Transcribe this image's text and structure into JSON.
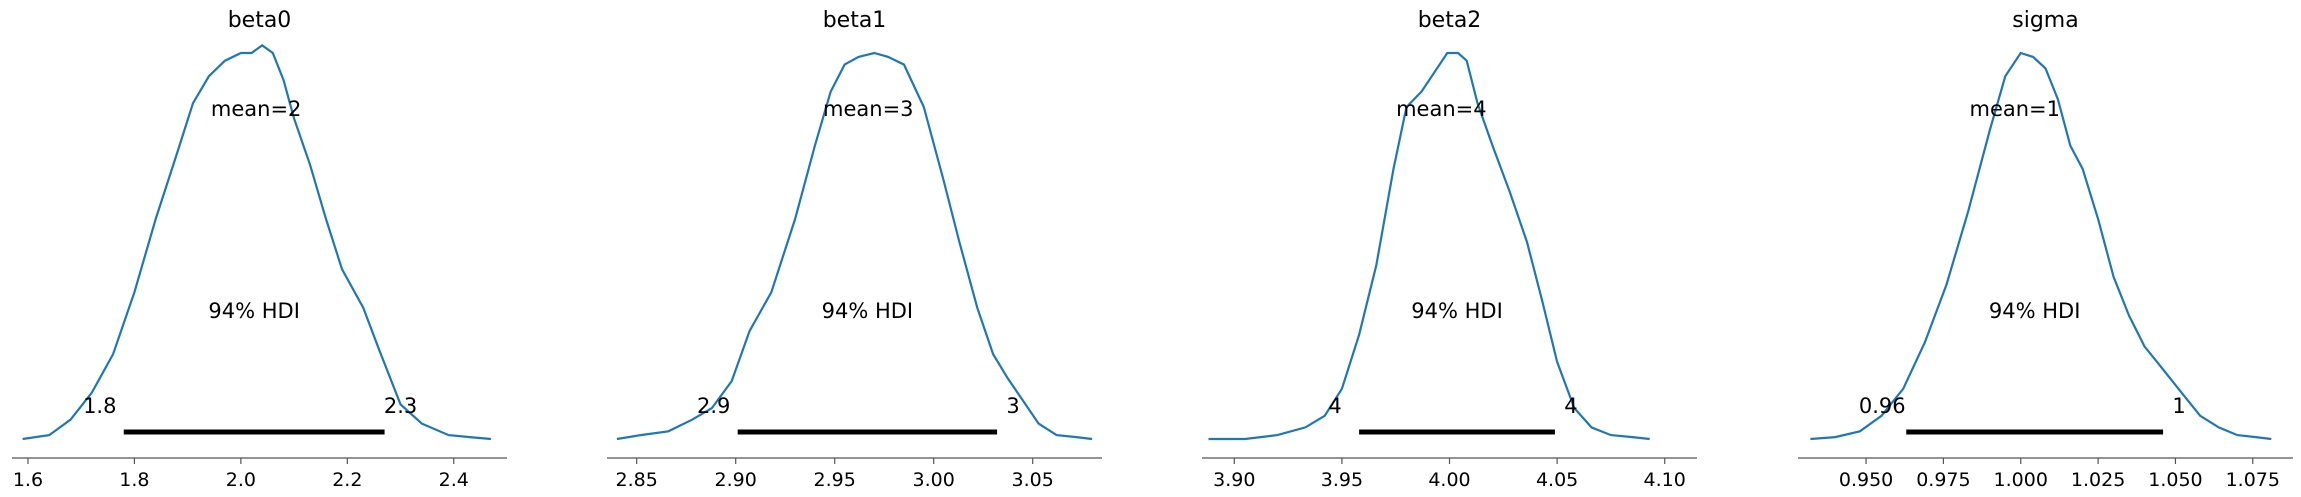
{
  "chart_data": [
    {
      "type": "line",
      "title": "beta0",
      "xlim": [
        1.57,
        2.5
      ],
      "ticks": [
        1.6,
        1.8,
        2.0,
        2.2,
        2.4
      ],
      "tick_labels": [
        "1.6",
        "1.8",
        "2.0",
        "2.2",
        "2.4"
      ],
      "mean_label": "mean=2",
      "hdi_label": "94% HDI",
      "hdi": [
        1.78,
        2.27
      ],
      "hdi_low_label": "1.8",
      "hdi_high_label": "2.3",
      "density": {
        "x": [
          1.59,
          1.64,
          1.68,
          1.72,
          1.76,
          1.8,
          1.84,
          1.88,
          1.91,
          1.94,
          1.97,
          2.0,
          2.02,
          2.04,
          2.06,
          2.08,
          2.1,
          2.13,
          2.16,
          2.19,
          2.23,
          2.26,
          2.3,
          2.34,
          2.39,
          2.43,
          2.47
        ],
        "y": [
          0.0,
          0.01,
          0.05,
          0.12,
          0.22,
          0.38,
          0.57,
          0.74,
          0.87,
          0.94,
          0.98,
          1.0,
          1.0,
          1.02,
          1.0,
          0.93,
          0.83,
          0.71,
          0.57,
          0.44,
          0.34,
          0.23,
          0.09,
          0.04,
          0.01,
          0.005,
          0.0
        ]
      }
    },
    {
      "type": "line",
      "title": "beta1",
      "xlim": [
        2.835,
        3.085
      ],
      "ticks": [
        2.85,
        2.9,
        2.95,
        3.0,
        3.05
      ],
      "tick_labels": [
        "2.85",
        "2.90",
        "2.95",
        "3.00",
        "3.05"
      ],
      "mean_label": "mean=3",
      "hdi_label": "94% HDI",
      "hdi": [
        2.901,
        3.032
      ],
      "hdi_low_label": "2.9",
      "hdi_high_label": "3",
      "density": {
        "x": [
          2.84,
          2.852,
          2.866,
          2.878,
          2.888,
          2.898,
          2.907,
          2.918,
          2.93,
          2.94,
          2.948,
          2.955,
          2.962,
          2.97,
          2.977,
          2.985,
          2.995,
          3.005,
          3.013,
          3.022,
          3.03,
          3.037,
          3.045,
          3.053,
          3.062,
          3.072,
          3.08
        ],
        "y": [
          0.0,
          0.01,
          0.02,
          0.05,
          0.08,
          0.15,
          0.28,
          0.38,
          0.57,
          0.76,
          0.9,
          0.97,
          0.99,
          1.0,
          0.99,
          0.97,
          0.86,
          0.67,
          0.51,
          0.34,
          0.22,
          0.16,
          0.1,
          0.04,
          0.01,
          0.005,
          0.0
        ]
      }
    },
    {
      "type": "line",
      "title": "beta2",
      "xlim": [
        3.885,
        4.115
      ],
      "ticks": [
        3.9,
        3.95,
        4.0,
        4.05,
        4.1
      ],
      "tick_labels": [
        "3.90",
        "3.95",
        "4.00",
        "4.05",
        "4.10"
      ],
      "mean_label": "mean=4",
      "hdi_label": "94% HDI",
      "hdi": [
        3.958,
        4.049
      ],
      "hdi_low_label": "4",
      "hdi_high_label": "4",
      "density": {
        "x": [
          3.888,
          3.905,
          3.92,
          3.933,
          3.942,
          3.95,
          3.958,
          3.966,
          3.974,
          3.98,
          3.987,
          3.993,
          3.999,
          4.004,
          4.008,
          4.013,
          4.02,
          4.028,
          4.036,
          4.043,
          4.05,
          4.058,
          4.066,
          4.075,
          4.085,
          4.093
        ],
        "y": [
          0.0,
          0.0,
          0.01,
          0.03,
          0.06,
          0.13,
          0.27,
          0.45,
          0.7,
          0.86,
          0.9,
          0.95,
          1.0,
          1.0,
          0.98,
          0.87,
          0.76,
          0.64,
          0.51,
          0.36,
          0.2,
          0.08,
          0.03,
          0.01,
          0.005,
          0.0
        ]
      }
    },
    {
      "type": "line",
      "title": "sigma",
      "xlim": [
        0.928,
        1.088
      ],
      "ticks": [
        0.95,
        0.975,
        1.0,
        1.025,
        1.05,
        1.075
      ],
      "tick_labels": [
        "0.950",
        "0.975",
        "1.000",
        "1.025",
        "1.050",
        "1.075"
      ],
      "mean_label": "mean=1",
      "hdi_label": "94% HDI",
      "hdi": [
        0.963,
        1.046
      ],
      "hdi_low_label": "0.96",
      "hdi_high_label": "1",
      "density": {
        "x": [
          0.932,
          0.94,
          0.948,
          0.955,
          0.962,
          0.969,
          0.976,
          0.983,
          0.99,
          0.995,
          1.0,
          1.004,
          1.008,
          1.012,
          1.016,
          1.02,
          1.025,
          1.03,
          1.035,
          1.04,
          1.046,
          1.052,
          1.058,
          1.064,
          1.07,
          1.076,
          1.081
        ],
        "y": [
          0.0,
          0.005,
          0.02,
          0.06,
          0.13,
          0.25,
          0.4,
          0.59,
          0.8,
          0.94,
          1.0,
          0.99,
          0.96,
          0.88,
          0.76,
          0.7,
          0.57,
          0.42,
          0.32,
          0.24,
          0.18,
          0.12,
          0.06,
          0.03,
          0.01,
          0.005,
          0.0
        ]
      }
    }
  ]
}
